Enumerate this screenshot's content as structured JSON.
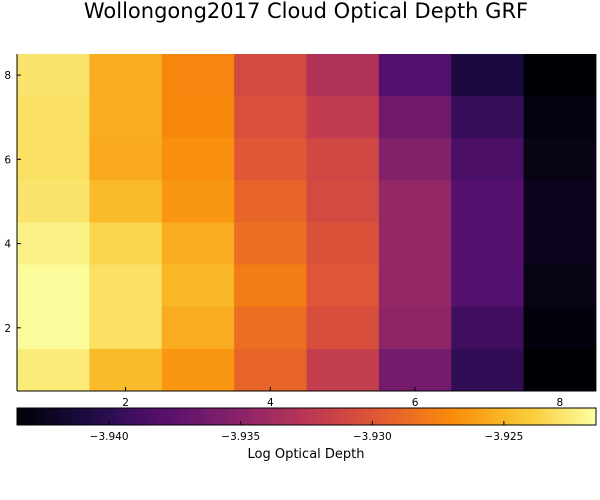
{
  "chart_data": {
    "type": "heatmap",
    "title": "Wollongong2017 Cloud Optical Depth GRF",
    "xlabel": "",
    "ylabel": "",
    "x_range": [
      0.5,
      8.5
    ],
    "y_range": [
      0.5,
      8.5
    ],
    "x_ticks": [
      "2",
      "4",
      "6",
      "8"
    ],
    "y_ticks": [
      "2",
      "4",
      "6",
      "8"
    ],
    "colorbar": {
      "label": "Log Optical Depth",
      "range": [
        -3.9435,
        -3.9215
      ],
      "ticks": [
        "−3.940",
        "−3.935",
        "−3.930",
        "−3.925"
      ],
      "tick_values": [
        -3.94,
        -3.935,
        -3.93,
        -3.925
      ],
      "colormap": "inferno"
    },
    "rows_top_to_bottom_y": [
      8,
      7,
      6,
      5,
      4,
      3,
      2,
      1
    ],
    "values": [
      [
        -3.9228,
        -3.9254,
        -3.9273,
        -3.9308,
        -3.933,
        -3.938,
        -3.941,
        -3.9435
      ],
      [
        -3.923,
        -3.9255,
        -3.9272,
        -3.9303,
        -3.932,
        -3.9365,
        -3.9395,
        -3.943
      ],
      [
        -3.923,
        -3.9256,
        -3.9268,
        -3.9298,
        -3.931,
        -3.9355,
        -3.9385,
        -3.9428
      ],
      [
        -3.9228,
        -3.9248,
        -3.9265,
        -3.929,
        -3.9308,
        -3.9345,
        -3.938,
        -3.9425
      ],
      [
        -3.9222,
        -3.9235,
        -3.9255,
        -3.9285,
        -3.9302,
        -3.9345,
        -3.938,
        -3.9425
      ],
      [
        -3.9217,
        -3.923,
        -3.925,
        -3.9278,
        -3.93,
        -3.9345,
        -3.938,
        -3.9428
      ],
      [
        -3.9217,
        -3.923,
        -3.9255,
        -3.9285,
        -3.9305,
        -3.9348,
        -3.939,
        -3.9432
      ],
      [
        -3.9225,
        -3.9248,
        -3.9265,
        -3.929,
        -3.9318,
        -3.9362,
        -3.9398,
        -3.9435
      ]
    ]
  }
}
